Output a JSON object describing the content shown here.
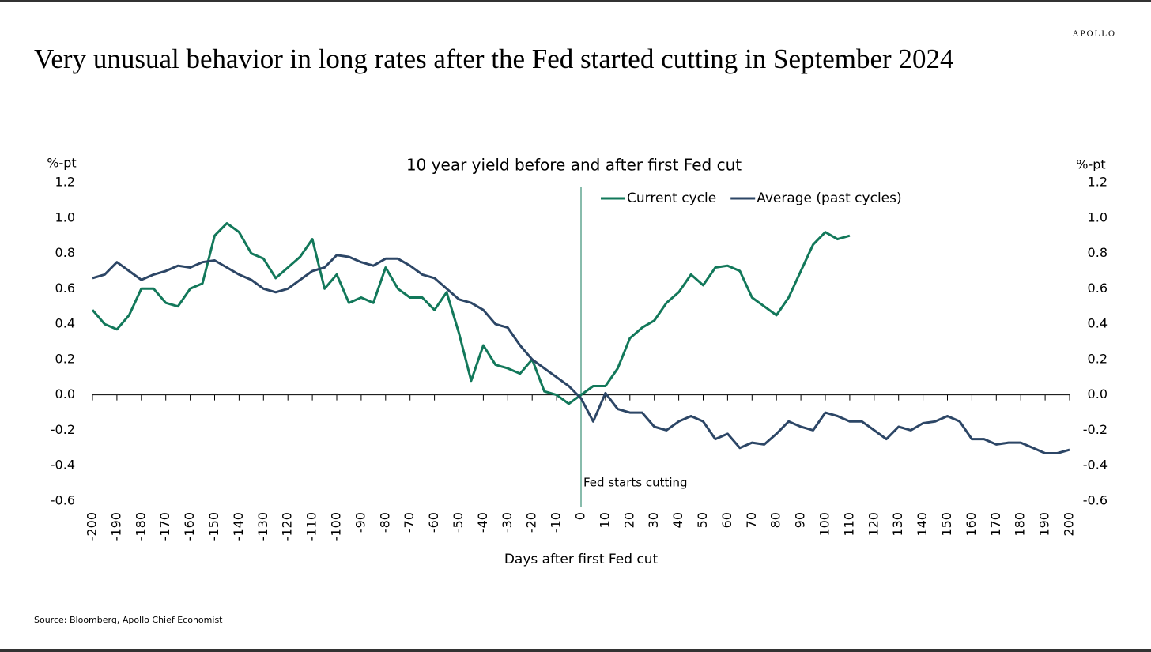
{
  "brand": "APOLLO",
  "chart_data": {
    "type": "line",
    "title": "Very unusual behavior in long rates after the Fed started cutting in September 2024",
    "subtitle": "10 year yield before and after first Fed cut",
    "y_label": "%-pt",
    "y2_label": "%-pt",
    "x_label": "Days after first Fed cut",
    "source": "Source: Bloomberg, Apollo Chief Economist",
    "annotation": {
      "x": 0,
      "text": "Fed starts cutting"
    },
    "legend": "top",
    "x": [
      -200,
      -195,
      -190,
      -185,
      -180,
      -175,
      -170,
      -165,
      -160,
      -155,
      -150,
      -145,
      -140,
      -135,
      -130,
      -125,
      -120,
      -115,
      -110,
      -105,
      -100,
      -95,
      -90,
      -85,
      -80,
      -75,
      -70,
      -65,
      -60,
      -55,
      -50,
      -45,
      -40,
      -35,
      -30,
      -25,
      -20,
      -15,
      -10,
      -5,
      0,
      5,
      10,
      15,
      20,
      25,
      30,
      35,
      40,
      45,
      50,
      55,
      60,
      65,
      70,
      75,
      80,
      85,
      90,
      95,
      100,
      105,
      110,
      115,
      120,
      125,
      130,
      135,
      140,
      145,
      150,
      155,
      160,
      165,
      170,
      175,
      180,
      185,
      190,
      195,
      200
    ],
    "series": [
      {
        "name": "Current cycle",
        "color": "#12785a",
        "values": [
          0.48,
          0.4,
          0.37,
          0.45,
          0.6,
          0.6,
          0.52,
          0.5,
          0.6,
          0.63,
          0.9,
          0.97,
          0.92,
          0.8,
          0.77,
          0.66,
          0.72,
          0.78,
          0.88,
          0.6,
          0.68,
          0.52,
          0.55,
          0.52,
          0.72,
          0.6,
          0.55,
          0.55,
          0.48,
          0.58,
          0.35,
          0.08,
          0.28,
          0.17,
          0.15,
          0.12,
          0.2,
          0.02,
          0,
          -0.05,
          0,
          0.05,
          0.05,
          0.15,
          0.32,
          0.38,
          0.42,
          0.52,
          0.58,
          0.68,
          0.62,
          0.72,
          0.73,
          0.7,
          0.55,
          0.5,
          0.45,
          0.55,
          0.7,
          0.85,
          0.92,
          0.88,
          0.9,
          null,
          null,
          null,
          null,
          null,
          null,
          null,
          null,
          null,
          null,
          null,
          null,
          null,
          null,
          null,
          null,
          null,
          null
        ]
      },
      {
        "name": "Average (past cycles)",
        "color": "#2c4666",
        "values": [
          0.66,
          0.68,
          0.75,
          0.7,
          0.65,
          0.68,
          0.7,
          0.73,
          0.72,
          0.75,
          0.76,
          0.72,
          0.68,
          0.65,
          0.6,
          0.58,
          0.6,
          0.65,
          0.7,
          0.72,
          0.79,
          0.78,
          0.75,
          0.73,
          0.77,
          0.77,
          0.73,
          0.68,
          0.66,
          0.6,
          0.54,
          0.52,
          0.48,
          0.4,
          0.38,
          0.28,
          0.2,
          0.15,
          0.1,
          0.05,
          -0.02,
          -0.15,
          0.01,
          -0.08,
          -0.1,
          -0.1,
          -0.18,
          -0.2,
          -0.15,
          -0.12,
          -0.15,
          -0.25,
          -0.22,
          -0.3,
          -0.27,
          -0.28,
          -0.22,
          -0.15,
          -0.18,
          -0.2,
          -0.1,
          -0.12,
          -0.15,
          -0.15,
          -0.2,
          -0.25,
          -0.18,
          -0.2,
          -0.16,
          -0.15,
          -0.12,
          -0.15,
          -0.25,
          -0.25,
          -0.28,
          -0.27,
          -0.27,
          -0.3,
          -0.33,
          -0.33,
          -0.31
        ]
      }
    ],
    "xlim": [
      -200,
      200
    ],
    "xticks": [
      -200,
      -190,
      -180,
      -170,
      -160,
      -150,
      -140,
      -130,
      -120,
      -110,
      -100,
      -90,
      -80,
      -70,
      -60,
      -50,
      -40,
      -30,
      -20,
      -10,
      0,
      10,
      20,
      30,
      40,
      50,
      60,
      70,
      80,
      90,
      100,
      110,
      120,
      130,
      140,
      150,
      160,
      170,
      180,
      190,
      200
    ],
    "ylim": [
      -0.6,
      1.2
    ],
    "yticks": [
      -0.6,
      -0.4,
      -0.2,
      {
        "value": 0,
        "label": "0.0"
      },
      0.2,
      0.4,
      0.6,
      0.8,
      {
        "value": 1,
        "label": "1.0"
      },
      1.2
    ],
    "y2lim": [
      -0.6,
      1.2
    ],
    "y2ticks": [
      -0.6,
      -0.4,
      -0.2,
      {
        "value": 0,
        "label": "0.0"
      },
      0.2,
      0.4,
      0.6,
      0.8,
      {
        "value": 1,
        "label": "1.0"
      },
      1.2
    ]
  }
}
